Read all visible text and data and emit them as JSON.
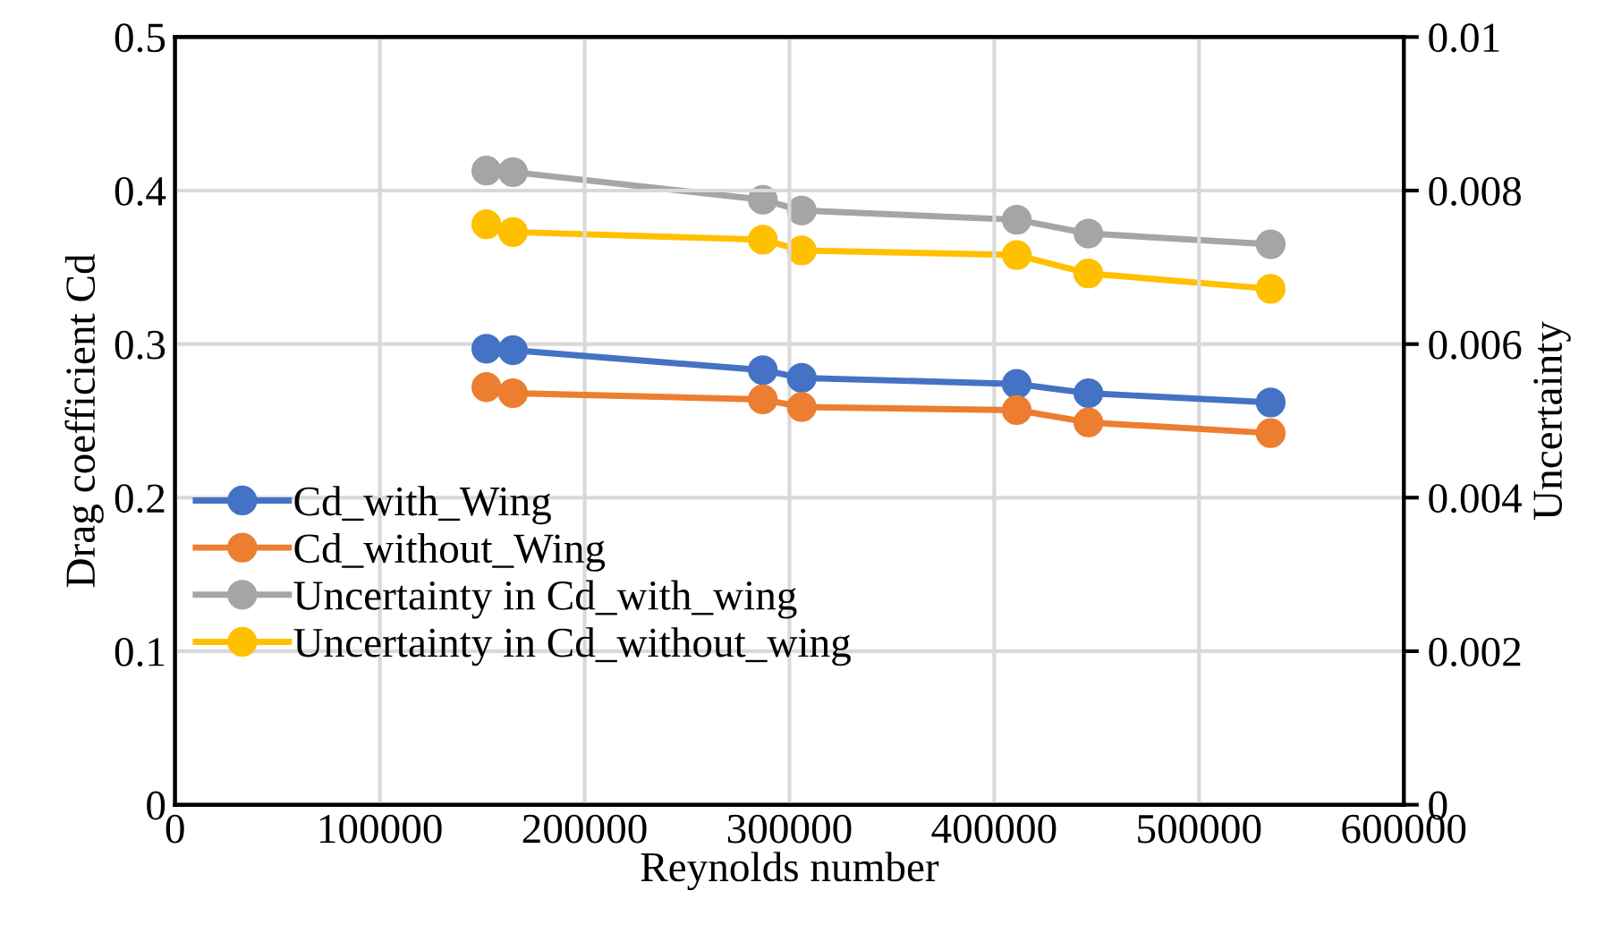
{
  "chart_data": {
    "type": "line",
    "xlabel": "Reynolds number",
    "ylabel": "Drag coefficient Cd",
    "y2label": "Uncertainty",
    "x": [
      152000,
      165000,
      287000,
      306000,
      411000,
      446000,
      535000
    ],
    "series": [
      {
        "name": "Cd_with_Wing",
        "color": "#4472c4",
        "values": [
          0.297,
          0.296,
          0.283,
          0.278,
          0.274,
          0.268,
          0.262
        ]
      },
      {
        "name": "Cd_without_Wing",
        "color": "#ed7d31",
        "values": [
          0.272,
          0.268,
          0.264,
          0.259,
          0.257,
          0.249,
          0.242
        ]
      },
      {
        "name": "Uncertainty in Cd_with_wing",
        "color": "#a5a5a5",
        "axis": "y2",
        "values": [
          0.00826,
          0.00824,
          0.00788,
          0.00774,
          0.00762,
          0.00744,
          0.0073
        ]
      },
      {
        "name": "Uncertainty in Cd_without_wing",
        "color": "#ffc000",
        "axis": "y2",
        "values": [
          0.00756,
          0.00746,
          0.00736,
          0.00722,
          0.00716,
          0.00692,
          0.00672
        ]
      }
    ],
    "xlim": [
      0,
      600000
    ],
    "xticks": [
      0,
      100000,
      200000,
      300000,
      400000,
      500000,
      600000
    ],
    "ylim": [
      0,
      0.5
    ],
    "yticks": [
      0,
      0.1,
      0.2,
      0.3,
      0.4,
      0.5
    ],
    "y2lim": [
      0,
      0.01
    ],
    "y2ticks": [
      0,
      0.002,
      0.004,
      0.006,
      0.008,
      0.01
    ],
    "grid": true,
    "legend": "bottom left",
    "marker": "circle",
    "line_style": "solid"
  }
}
